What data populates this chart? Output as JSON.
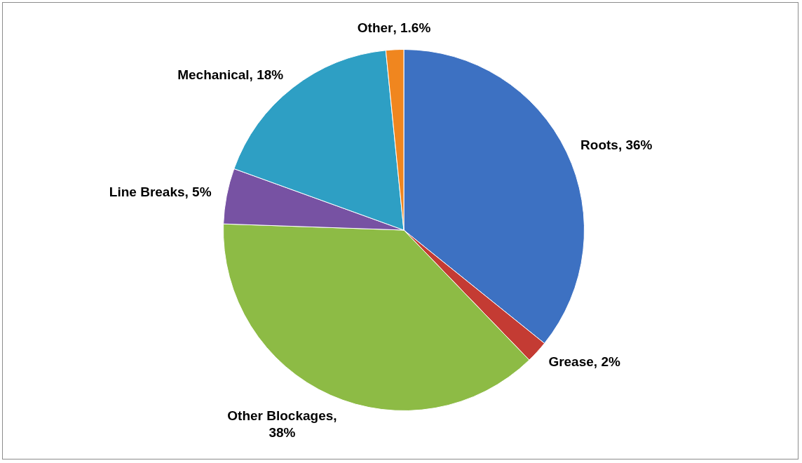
{
  "chart_data": {
    "type": "pie",
    "categories": [
      "Roots",
      "Grease",
      "Other Blockages",
      "Line Breaks",
      "Mechanical",
      "Other"
    ],
    "values": [
      36,
      2,
      38,
      5,
      18,
      1.6
    ],
    "value_labels": [
      ", 36%",
      ", 2%",
      ", 38%",
      ", 5%",
      ", 18%",
      ", 1.6%"
    ],
    "colors": [
      "#3d71c2",
      "#c43b33",
      "#8dbb45",
      "#7752a3",
      "#2e9fc4",
      "#f0861f"
    ],
    "legend": false
  }
}
